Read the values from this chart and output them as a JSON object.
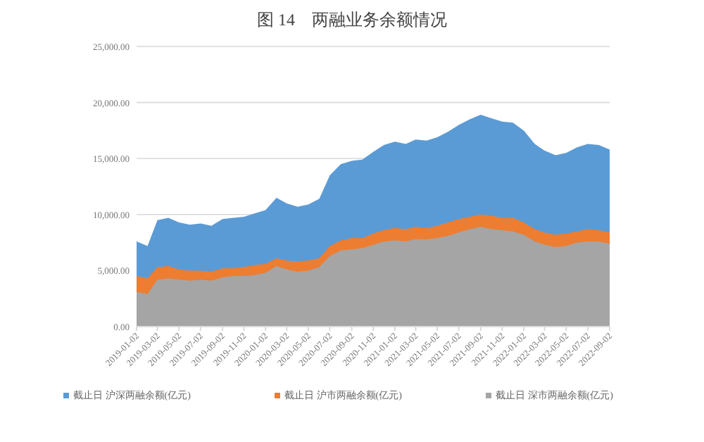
{
  "chart_data": {
    "type": "area",
    "title": "图 14　两融业务余额情况",
    "x": [
      "2019-01-02",
      "2019-02-02",
      "2019-03-02",
      "2019-04-02",
      "2019-05-02",
      "2019-06-02",
      "2019-07-02",
      "2019-08-02",
      "2019-09-02",
      "2019-10-02",
      "2019-11-02",
      "2019-12-02",
      "2020-01-02",
      "2020-02-02",
      "2020-03-02",
      "2020-04-02",
      "2020-05-02",
      "2020-06-02",
      "2020-07-02",
      "2020-08-02",
      "2020-09-02",
      "2020-10-02",
      "2020-11-02",
      "2020-12-02",
      "2021-01-02",
      "2021-02-02",
      "2021-03-02",
      "2021-04-02",
      "2021-05-02",
      "2021-06-02",
      "2021-07-02",
      "2021-08-02",
      "2021-09-02",
      "2021-10-02",
      "2021-11-02",
      "2021-12-02",
      "2022-01-02",
      "2022-02-02",
      "2022-03-02",
      "2022-04-02",
      "2022-05-02",
      "2022-06-02",
      "2022-07-02",
      "2022-08-02",
      "2022-09-02"
    ],
    "series": [
      {
        "name": "截止日 沪深两融余额(亿元)",
        "color": "#5b9bd5",
        "values": [
          7600,
          7200,
          9500,
          9700,
          9300,
          9100,
          9200,
          9000,
          9600,
          9700,
          9800,
          10100,
          10400,
          11500,
          11000,
          10700,
          10900,
          11400,
          13500,
          14500,
          14800,
          14900,
          15600,
          16200,
          16500,
          16300,
          16700,
          16600,
          16900,
          17400,
          18000,
          18500,
          18900,
          18600,
          18300,
          18200,
          17500,
          16300,
          15700,
          15300,
          15500,
          16000,
          16300,
          16200,
          15800
        ]
      },
      {
        "name": "截止日 沪市两融余额(亿元)",
        "color": "#ed7d31",
        "values": [
          4500,
          4300,
          5300,
          5400,
          5100,
          5000,
          5000,
          4900,
          5200,
          5200,
          5300,
          5500,
          5600,
          6100,
          5900,
          5800,
          5900,
          6100,
          7200,
          7700,
          7900,
          7900,
          8300,
          8600,
          8800,
          8700,
          8900,
          8800,
          9000,
          9300,
          9600,
          9800,
          10000,
          9900,
          9700,
          9700,
          9300,
          8700,
          8400,
          8200,
          8300,
          8500,
          8700,
          8600,
          8400
        ]
      },
      {
        "name": "截止日 深市两融余额(亿元)",
        "color": "#a5a5a5",
        "values": [
          3100,
          2900,
          4200,
          4300,
          4200,
          4100,
          4200,
          4100,
          4400,
          4500,
          4500,
          4600,
          4800,
          5400,
          5100,
          4900,
          5000,
          5300,
          6300,
          6800,
          6900,
          7000,
          7300,
          7600,
          7700,
          7600,
          7800,
          7800,
          7900,
          8100,
          8400,
          8700,
          8900,
          8700,
          8600,
          8500,
          8200,
          7600,
          7300,
          7100,
          7200,
          7500,
          7600,
          7600,
          7400
        ]
      }
    ],
    "xlim": [
      "2019-01-02",
      "2022-09-02"
    ],
    "xticks": [
      "2019-01-02",
      "2019-03-02",
      "2019-05-02",
      "2019-07-02",
      "2019-09-02",
      "2019-11-02",
      "2020-01-02",
      "2020-03-02",
      "2020-05-02",
      "2020-07-02",
      "2020-09-02",
      "2020-11-02",
      "2021-01-02",
      "2021-03-02",
      "2021-05-02",
      "2021-07-02",
      "2021-09-02",
      "2021-11-02",
      "2022-01-02",
      "2022-03-02",
      "2022-05-02",
      "2022-07-02",
      "2022-09-02"
    ],
    "ylim": [
      0,
      25000
    ],
    "yticks": [
      {
        "value": 0,
        "label": "0.00"
      },
      {
        "value": 5000,
        "label": "5,000.00"
      },
      {
        "value": 10000,
        "label": "10,000.00"
      },
      {
        "value": 15000,
        "label": "15,000.00"
      },
      {
        "value": 20000,
        "label": "20,000.00"
      },
      {
        "value": 25000,
        "label": "25,000.00"
      }
    ],
    "grid": "y",
    "legend": "bottom"
  }
}
